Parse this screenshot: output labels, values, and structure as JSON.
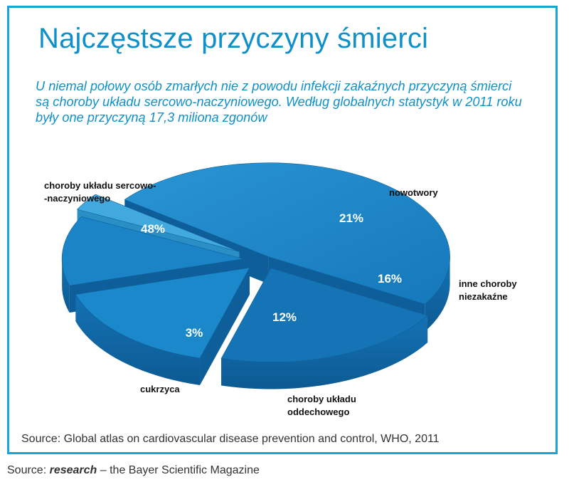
{
  "title": "Najczęstsze przyczyny śmierci",
  "subtitle": "U niemal połowy osób zmarłych nie z powodu infekcji zakaźnych przyczyną śmierci są choroby układu sercowo-naczyniowego. Według globalnych statystyk w 2011 roku były one przyczyną 17,3 miliona zgonów",
  "source_inner": "Source: Global atlas on cardiovascular disease prevention and control, WHO, 2011",
  "source_outer": {
    "prefix": "Source: ",
    "magazine": "research",
    "suffix": " – the Bayer Scientific Magazine"
  },
  "colors": {
    "accent": "#1090c9",
    "frame": "#1aa3d9",
    "slice_top": "#1a84c6",
    "slice_side": "#0e5f99",
    "slice_light": "#41a9de"
  },
  "chart_data": {
    "type": "pie",
    "style": "3d-exploded",
    "slices": [
      {
        "category": [
          "choroby układu sercowo-",
          "-naczyniowego"
        ],
        "value": 48,
        "label": "48%"
      },
      {
        "category": [
          "nowotwory"
        ],
        "value": 21,
        "label": "21%"
      },
      {
        "category": [
          "inne choroby",
          "niezakaźne"
        ],
        "value": 16,
        "label": "16%"
      },
      {
        "category": [
          "choroby układu",
          "oddechowego"
        ],
        "value": 12,
        "label": "12%"
      },
      {
        "category": [
          "cukrzyca"
        ],
        "value": 3,
        "label": "3%"
      }
    ]
  }
}
